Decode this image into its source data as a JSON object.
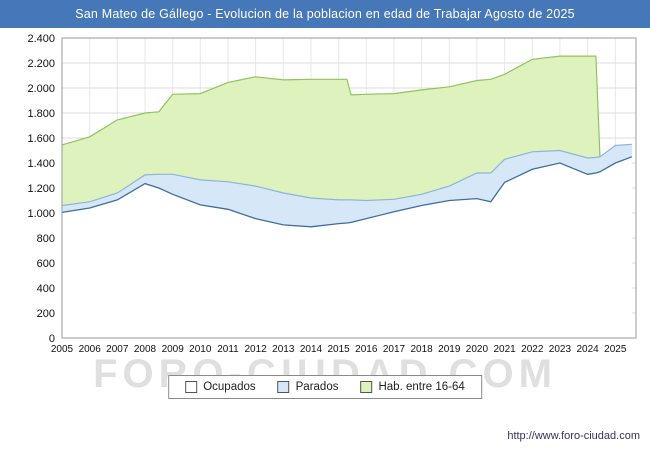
{
  "title": "San Mateo de Gállego - Evolucion de la poblacion en edad de Trabajar Agosto de 2025",
  "watermark": "FORO-CIUDAD.COM",
  "footer_url": "http://www.foro-ciudad.com",
  "title_bar_color": "#4677b8",
  "legend": [
    {
      "label": "Ocupados",
      "fill": "#ffffff",
      "line": "#3f6e9e"
    },
    {
      "label": "Parados",
      "fill": "#d6e8f8",
      "line": "#8fb3d8"
    },
    {
      "label": "Hab. entre 16-64",
      "fill": "#ddf2bd",
      "line": "#93c25e"
    }
  ],
  "chart_data": {
    "type": "area",
    "title": "San Mateo de Gállego - Evolucion de la poblacion en edad de Trabajar Agosto de 2025",
    "xlabel": "",
    "ylabel": "",
    "grid": true,
    "legend_position": "bottom",
    "ylim": [
      0,
      2400
    ],
    "ytick_step": 200,
    "xlim": [
      2005,
      2025.75
    ],
    "x_label_years": [
      2005,
      2006,
      2007,
      2008,
      2009,
      2010,
      2011,
      2012,
      2013,
      2014,
      2015,
      2016,
      2017,
      2018,
      2019,
      2020,
      2021,
      2022,
      2023,
      2024,
      2025
    ],
    "x": [
      2005,
      2006,
      2007,
      2008,
      2008.5,
      2009,
      2010,
      2011,
      2012,
      2013,
      2014,
      2015,
      2015.3,
      2015.45,
      2016,
      2017,
      2018,
      2019,
      2020,
      2020.5,
      2021,
      2022,
      2023,
      2024,
      2024.3,
      2024.45,
      2025,
      2025.6
    ],
    "series": [
      {
        "name": "Ocupados",
        "stacking": "base",
        "values": [
          1005,
          1040,
          1105,
          1235,
          1200,
          1150,
          1065,
          1030,
          955,
          905,
          890,
          915,
          920,
          925,
          955,
          1010,
          1060,
          1100,
          1115,
          1090,
          1245,
          1350,
          1400,
          1310,
          1320,
          1330,
          1400,
          1450
        ]
      },
      {
        "name": "Parados",
        "stacking": "stacked_on_ocupados",
        "values": [
          55,
          50,
          55,
          70,
          110,
          160,
          200,
          220,
          260,
          255,
          230,
          190,
          185,
          180,
          145,
          100,
          90,
          115,
          205,
          230,
          185,
          140,
          100,
          130,
          125,
          120,
          140,
          100
        ]
      },
      {
        "name": "Hab. entre 16-64",
        "stacking": "none",
        "values": [
          1545,
          1610,
          1745,
          1800,
          1810,
          1950,
          1955,
          2045,
          2090,
          2065,
          2070,
          2070,
          2070,
          1945,
          1950,
          1955,
          1985,
          2010,
          2060,
          2070,
          2110,
          2230,
          2255,
          2255,
          2255,
          1440,
          1500,
          1530
        ]
      }
    ]
  }
}
